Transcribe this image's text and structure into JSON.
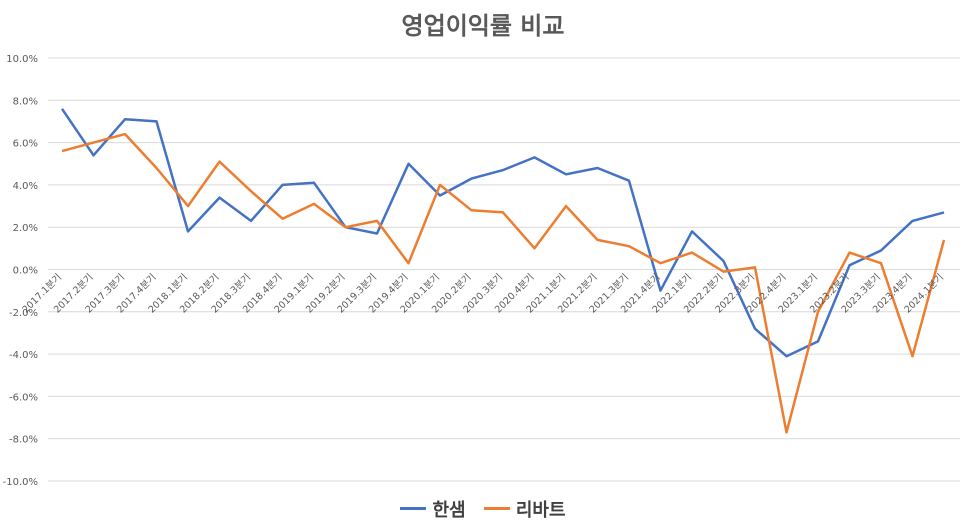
{
  "chart_data": {
    "type": "line",
    "title": "영업이익률 비교",
    "xlabel": "",
    "ylabel": "",
    "ylim": [
      -10,
      10
    ],
    "y_ticks": [
      "-10.0%",
      "-8.0%",
      "-6.0%",
      "-4.0%",
      "-2.0%",
      "0.0%",
      "2.0%",
      "4.0%",
      "6.0%",
      "8.0%",
      "10.0%"
    ],
    "grid": true,
    "legend_position": "bottom",
    "categories": [
      "2017.1분기",
      "2017.2분기",
      "2017.3분기",
      "2017.4분기",
      "2018.1분기",
      "2018.2분기",
      "2018.3분기",
      "2018.4분기",
      "2019.1분기",
      "2019.2분기",
      "2019.3분기",
      "2019.4분기",
      "2020.1분기",
      "2020.2분기",
      "2020.3분기",
      "2020.4분기",
      "2021.1분기",
      "2021.2분기",
      "2021.3분기",
      "2021.4분기",
      "2022.1분기",
      "2022.2분기",
      "2022.3분기",
      "2022.4분기",
      "2023.1분기",
      "2023.2분기",
      "2023.3분기",
      "2023.4분기",
      "2024.1분기"
    ],
    "series": [
      {
        "name": "한샘",
        "color": "#4472C4",
        "values": [
          7.6,
          5.4,
          7.1,
          7.0,
          1.8,
          3.4,
          2.3,
          4.0,
          4.1,
          2.0,
          1.7,
          5.0,
          3.5,
          4.3,
          4.7,
          5.3,
          4.5,
          4.8,
          4.2,
          -1.0,
          1.8,
          0.4,
          -2.8,
          -4.1,
          -3.4,
          0.2,
          0.9,
          2.3,
          2.7
        ]
      },
      {
        "name": "리바트",
        "color": "#ED7D31",
        "values": [
          5.6,
          6.0,
          6.4,
          4.8,
          3.0,
          5.1,
          3.7,
          2.4,
          3.1,
          2.0,
          2.3,
          0.3,
          4.0,
          2.8,
          2.7,
          1.0,
          3.0,
          1.4,
          1.1,
          0.3,
          0.8,
          -0.1,
          0.1,
          -7.7,
          -2.0,
          0.8,
          0.3,
          -4.1,
          1.4
        ]
      }
    ]
  }
}
